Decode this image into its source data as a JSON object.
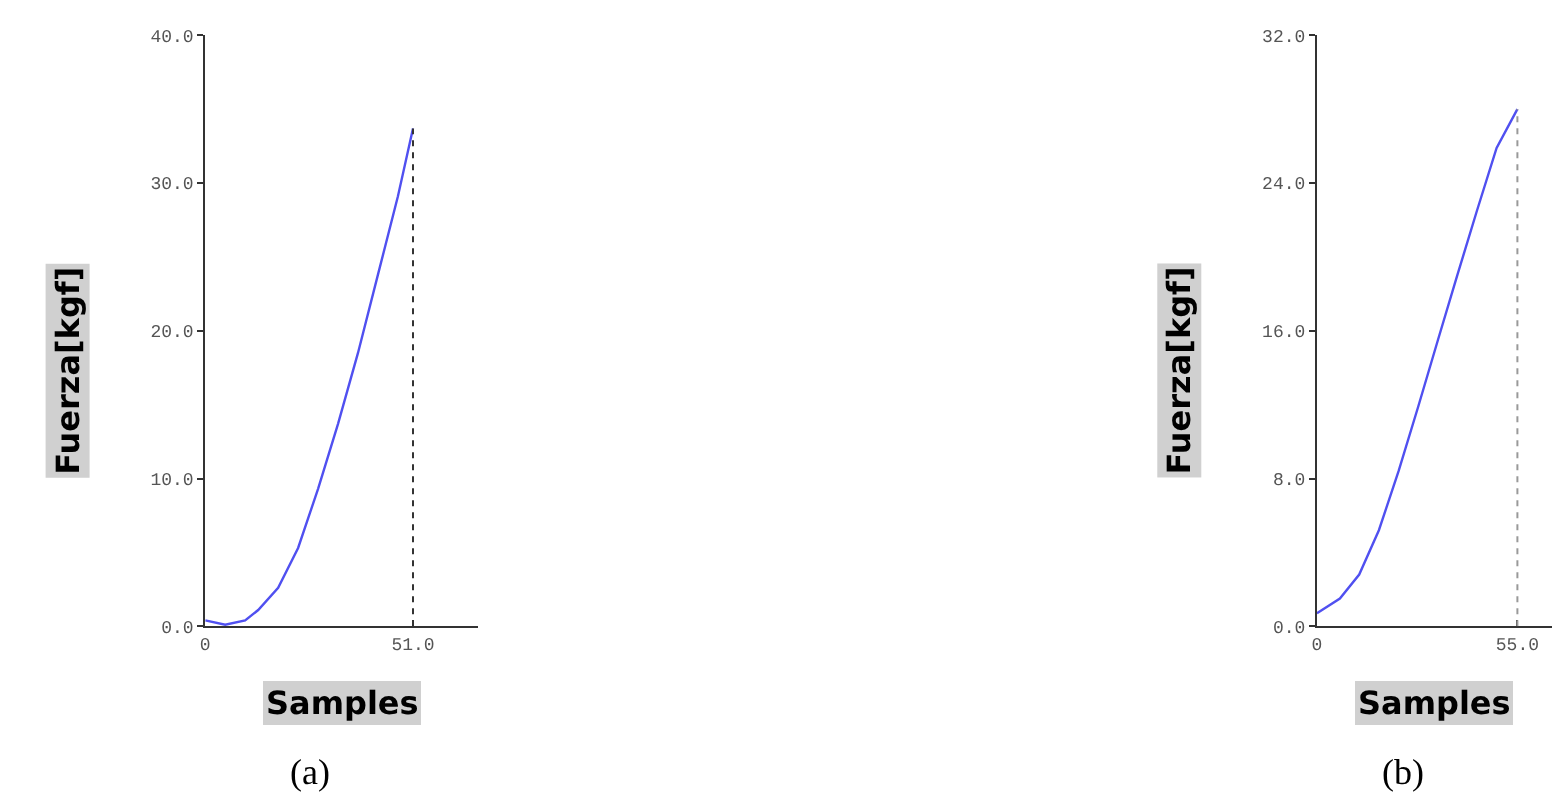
{
  "chart_data": [
    {
      "type": "line",
      "xlabel": "Samples",
      "ylabel": "Fuerza[kgf]",
      "annotations": [
        "(a)"
      ],
      "series": [
        {
          "color": "#5050f0",
          "x": [
            0,
            4.9,
            9.8,
            13,
            17.9,
            22.8,
            27.7,
            32.6,
            37.5,
            42.4,
            47.3,
            51
          ],
          "values": [
            0.4,
            0.1,
            0.4,
            1.1,
            2.6,
            5.3,
            9.3,
            13.7,
            18.5,
            23.8,
            29.1,
            33.7
          ]
        }
      ],
      "xlim": [
        0,
        67
      ],
      "ylim": [
        0,
        40
      ],
      "xticks": [
        0,
        {
          "value": 51,
          "label": "51.0"
        }
      ],
      "yticks": [
        {
          "value": 0,
          "label": "0.0"
        },
        {
          "value": 10,
          "label": "10.0"
        },
        {
          "value": 20,
          "label": "20.0"
        },
        {
          "value": 30,
          "label": "30.0"
        },
        {
          "value": 40,
          "label": "40.0"
        }
      ],
      "ref_lines": [
        {
          "axis": "x",
          "value": 51,
          "line_style": "dotted",
          "color": "#333333"
        }
      ]
    },
    {
      "type": "line",
      "xlabel": "Samples",
      "ylabel": "Fuerza[kgf]",
      "annotations": [
        "(b)"
      ],
      "series": [
        {
          "color": "#5050f0",
          "x": [
            0,
            6.3,
            11.6,
            17,
            22.4,
            27.8,
            33.2,
            38.5,
            43.9,
            49.3,
            55
          ],
          "values": [
            0.7,
            1.5,
            2.8,
            5.2,
            8.4,
            11.9,
            15.5,
            19,
            22.5,
            25.9,
            28
          ]
        }
      ],
      "xlim": [
        0,
        64.5
      ],
      "ylim": [
        0,
        32
      ],
      "xticks": [
        0,
        {
          "value": 55,
          "label": "55.0"
        }
      ],
      "yticks": [
        {
          "value": 0,
          "label": "0.0"
        },
        {
          "value": 8,
          "label": "8.0"
        },
        {
          "value": 16,
          "label": "16.0"
        },
        {
          "value": 24,
          "label": "24.0"
        },
        {
          "value": 32,
          "label": "32.0"
        }
      ],
      "ref_lines": [
        {
          "axis": "x",
          "value": 55,
          "line_style": "dotted",
          "color": "#999999"
        }
      ]
    }
  ]
}
